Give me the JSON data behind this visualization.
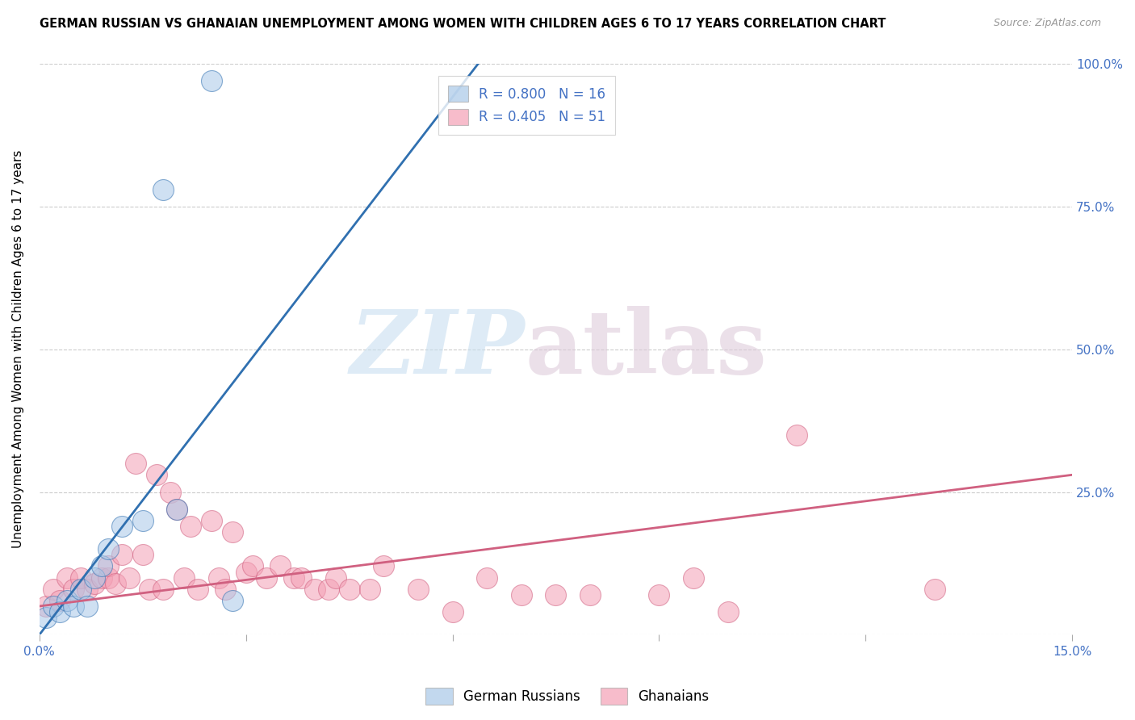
{
  "title": "GERMAN RUSSIAN VS GHANAIAN UNEMPLOYMENT AMONG WOMEN WITH CHILDREN AGES 6 TO 17 YEARS CORRELATION CHART",
  "source": "Source: ZipAtlas.com",
  "ylabel": "Unemployment Among Women with Children Ages 6 to 17 years",
  "xlim": [
    0,
    0.15
  ],
  "ylim": [
    0,
    1.0
  ],
  "color_blue": "#a8c8e8",
  "color_pink": "#f4a0b5",
  "line_blue": "#3070b0",
  "line_pink": "#d06080",
  "german_russian_x": [
    0.001,
    0.002,
    0.003,
    0.004,
    0.005,
    0.006,
    0.007,
    0.008,
    0.009,
    0.01,
    0.012,
    0.015,
    0.018,
    0.02,
    0.025,
    0.028
  ],
  "german_russian_y": [
    0.03,
    0.05,
    0.04,
    0.06,
    0.05,
    0.08,
    0.05,
    0.1,
    0.12,
    0.15,
    0.19,
    0.2,
    0.78,
    0.22,
    0.97,
    0.06
  ],
  "ghanaian_x": [
    0.001,
    0.002,
    0.003,
    0.004,
    0.005,
    0.006,
    0.007,
    0.008,
    0.009,
    0.01,
    0.01,
    0.011,
    0.012,
    0.013,
    0.014,
    0.015,
    0.016,
    0.017,
    0.018,
    0.019,
    0.02,
    0.021,
    0.022,
    0.023,
    0.025,
    0.026,
    0.027,
    0.028,
    0.03,
    0.031,
    0.033,
    0.035,
    0.037,
    0.038,
    0.04,
    0.042,
    0.043,
    0.045,
    0.048,
    0.05,
    0.055,
    0.06,
    0.065,
    0.07,
    0.075,
    0.08,
    0.09,
    0.095,
    0.1,
    0.11,
    0.13
  ],
  "ghanaian_y": [
    0.05,
    0.08,
    0.06,
    0.1,
    0.08,
    0.1,
    0.08,
    0.09,
    0.1,
    0.1,
    0.12,
    0.09,
    0.14,
    0.1,
    0.3,
    0.14,
    0.08,
    0.28,
    0.08,
    0.25,
    0.22,
    0.1,
    0.19,
    0.08,
    0.2,
    0.1,
    0.08,
    0.18,
    0.11,
    0.12,
    0.1,
    0.12,
    0.1,
    0.1,
    0.08,
    0.08,
    0.1,
    0.08,
    0.08,
    0.12,
    0.08,
    0.04,
    0.1,
    0.07,
    0.07,
    0.07,
    0.07,
    0.1,
    0.04,
    0.35,
    0.08
  ],
  "blue_line_x": [
    0.0,
    0.065
  ],
  "blue_line_y": [
    0.0,
    1.02
  ],
  "pink_line_x": [
    0.0,
    0.15
  ],
  "pink_line_y": [
    0.05,
    0.28
  ]
}
